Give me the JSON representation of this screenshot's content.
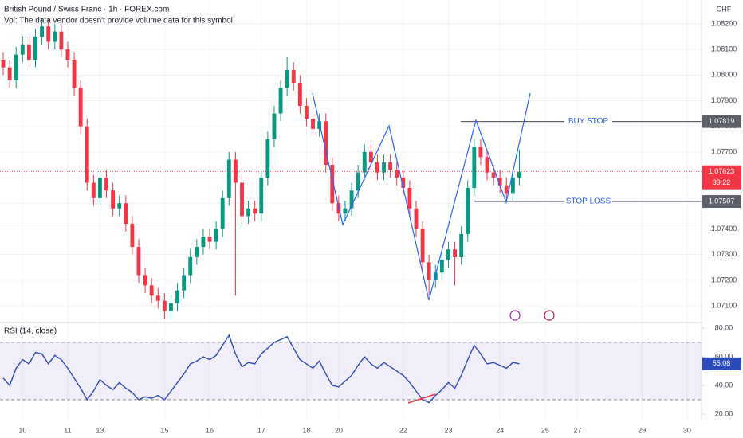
{
  "header": {
    "symbol": "British Pound / Swiss Franc · 1h · FOREX.com",
    "volume_note": "Vol: The data vendor doesn't provide volume data for this symbol.",
    "currency": "CHF"
  },
  "chart_data": [
    {
      "type": "candlestick",
      "up_color": "#089981",
      "down_color": "#f23645",
      "grid": true,
      "open": [
        1.0806,
        1.0803,
        1.0798,
        1.0808,
        1.0812,
        1.0806,
        1.0815,
        1.0819,
        1.0813,
        1.0817,
        1.081,
        1.0806,
        1.0795,
        1.078,
        1.0758,
        1.0752,
        1.076,
        1.0755,
        1.0748,
        1.075,
        1.0742,
        1.0733,
        1.0722,
        1.0718,
        1.0714,
        1.0712,
        1.0708,
        1.0711,
        1.0716,
        1.0722,
        1.0729,
        1.0733,
        1.0737,
        1.0735,
        1.074,
        1.0752,
        1.0767,
        1.0758,
        1.0745,
        1.0748,
        1.0746,
        1.076,
        1.0775,
        1.0785,
        1.0795,
        1.0802,
        1.0797,
        1.0788,
        1.0783,
        1.0779,
        1.0782,
        1.0765,
        1.075,
        1.0746,
        1.0748,
        1.0755,
        1.0762,
        1.077,
        1.0766,
        1.0762,
        1.0766,
        1.0763,
        1.076,
        1.0756,
        1.0748,
        1.074,
        1.0727,
        1.072,
        1.0723,
        1.0728,
        1.0732,
        1.0729,
        1.0738,
        1.0756,
        1.0772,
        1.0768,
        1.0762,
        1.076,
        1.0757,
        1.0754,
        1.076
      ],
      "high": [
        1.0809,
        1.0806,
        1.0811,
        1.0815,
        1.0815,
        1.0818,
        1.0822,
        1.0822,
        1.082,
        1.082,
        1.0813,
        1.0809,
        1.0798,
        1.0783,
        1.0761,
        1.0763,
        1.0763,
        1.0758,
        1.0753,
        1.0753,
        1.0745,
        1.0736,
        1.0725,
        1.0721,
        1.0717,
        1.0715,
        1.0714,
        1.0719,
        1.0725,
        1.0732,
        1.0736,
        1.074,
        1.074,
        1.0743,
        1.0755,
        1.077,
        1.077,
        1.0761,
        1.0751,
        1.0751,
        1.0763,
        1.0778,
        1.0788,
        1.0798,
        1.0807,
        1.0805,
        1.08,
        1.0791,
        1.0786,
        1.0785,
        1.0785,
        1.0768,
        1.0753,
        1.0751,
        1.0758,
        1.0765,
        1.0773,
        1.0773,
        1.0769,
        1.0769,
        1.0769,
        1.0766,
        1.0763,
        1.0759,
        1.0751,
        1.0743,
        1.073,
        1.0726,
        1.0731,
        1.0735,
        1.0735,
        1.0741,
        1.0759,
        1.0775,
        1.0775,
        1.0771,
        1.0765,
        1.0763,
        1.076,
        1.0763,
        1.0771
      ],
      "low": [
        1.08,
        1.0795,
        1.0795,
        1.0805,
        1.0803,
        1.0803,
        1.0812,
        1.081,
        1.081,
        1.0807,
        1.0803,
        1.0792,
        1.0777,
        1.0755,
        1.0749,
        1.0749,
        1.0752,
        1.0745,
        1.0745,
        1.0739,
        1.073,
        1.0719,
        1.0715,
        1.0711,
        1.0709,
        1.0705,
        1.0705,
        1.0708,
        1.0713,
        1.0719,
        1.0726,
        1.073,
        1.0732,
        1.0732,
        1.0737,
        1.0749,
        1.0714,
        1.0742,
        1.0742,
        1.0743,
        1.0743,
        1.0757,
        1.0772,
        1.0782,
        1.0792,
        1.0794,
        1.0785,
        1.078,
        1.0776,
        1.0776,
        1.0762,
        1.0747,
        1.0743,
        1.0743,
        1.0745,
        1.0752,
        1.0759,
        1.0763,
        1.0759,
        1.0759,
        1.076,
        1.0757,
        1.0753,
        1.0745,
        1.0737,
        1.0724,
        1.0714,
        1.0717,
        1.072,
        1.0725,
        1.0718,
        1.0726,
        1.0735,
        1.0753,
        1.0765,
        1.0759,
        1.0757,
        1.0754,
        1.0751,
        1.0751,
        1.0757
      ],
      "close": [
        1.0803,
        1.0798,
        1.0808,
        1.0812,
        1.0806,
        1.0815,
        1.0819,
        1.0813,
        1.0817,
        1.081,
        1.0806,
        1.0795,
        1.078,
        1.0758,
        1.0752,
        1.076,
        1.0755,
        1.0748,
        1.075,
        1.0742,
        1.0733,
        1.0722,
        1.0718,
        1.0714,
        1.0712,
        1.0708,
        1.0711,
        1.0716,
        1.0722,
        1.0729,
        1.0733,
        1.0737,
        1.0735,
        1.074,
        1.0752,
        1.0767,
        1.0758,
        1.0745,
        1.0748,
        1.0746,
        1.076,
        1.0775,
        1.0785,
        1.0795,
        1.0802,
        1.0797,
        1.0788,
        1.0783,
        1.0779,
        1.0782,
        1.0765,
        1.075,
        1.0746,
        1.0748,
        1.0755,
        1.0762,
        1.077,
        1.0766,
        1.0762,
        1.0766,
        1.0763,
        1.076,
        1.0756,
        1.0748,
        1.074,
        1.0727,
        1.072,
        1.0723,
        1.0728,
        1.0732,
        1.0729,
        1.0738,
        1.0756,
        1.0772,
        1.0768,
        1.0762,
        1.076,
        1.0757,
        1.0754,
        1.076,
        1.07623
      ],
      "ylim": [
        1.07035,
        1.08293
      ],
      "yticks": [
        {
          "value": 1.071,
          "label": "1.07100"
        },
        {
          "value": 1.072,
          "label": "1.07200"
        },
        {
          "value": 1.073,
          "label": "1.07300"
        },
        {
          "value": 1.074,
          "label": "1.07400"
        },
        {
          "value": 1.075,
          "label": "1.07500"
        },
        {
          "value": 1.076,
          "label": "1.07600"
        },
        {
          "value": 1.077,
          "label": "1.07700"
        },
        {
          "value": 1.078,
          "label": "1.07800"
        },
        {
          "value": 1.079,
          "label": "1.07900"
        },
        {
          "value": 1.08,
          "label": "1.08000"
        },
        {
          "value": 1.081,
          "label": "1.08100"
        },
        {
          "value": 1.082,
          "label": "1.08200"
        }
      ],
      "xlim": [
        -0.5,
        107
      ],
      "xticks": [
        {
          "value": 3,
          "label": "10"
        },
        {
          "value": 10,
          "label": "11"
        },
        {
          "value": 15,
          "label": "13"
        },
        {
          "value": 25,
          "label": "15"
        },
        {
          "value": 32,
          "label": "16"
        },
        {
          "value": 40,
          "label": "17"
        },
        {
          "value": 47,
          "label": "18"
        },
        {
          "value": 52,
          "label": "20"
        },
        {
          "value": 62,
          "label": "22"
        },
        {
          "value": 69,
          "label": "23"
        },
        {
          "value": 77,
          "label": "24"
        },
        {
          "value": 84,
          "label": "25"
        },
        {
          "value": 89,
          "label": "27"
        },
        {
          "value": 99,
          "label": "29"
        },
        {
          "value": 106,
          "label": "30"
        }
      ],
      "countdown": "39:22",
      "levels": [
        {
          "name": "BUY STOP",
          "value": 1.07819
        },
        {
          "name": "STOP LOSS",
          "value": 1.07507
        }
      ]
    },
    {
      "type": "line",
      "title": "RSI (14, close)",
      "color": "#2a4ab8",
      "band": [
        30,
        70
      ],
      "values": [
        45,
        40,
        52,
        58,
        55,
        63,
        62,
        55,
        61,
        58,
        52,
        45,
        38,
        30,
        36,
        44,
        40,
        37,
        42,
        38,
        35,
        30,
        32,
        31,
        33,
        30,
        36,
        42,
        48,
        55,
        57,
        60,
        58,
        61,
        68,
        75,
        62,
        53,
        56,
        55,
        62,
        66,
        70,
        72,
        74,
        66,
        58,
        55,
        52,
        57,
        48,
        40,
        39,
        43,
        47,
        54,
        60,
        55,
        52,
        56,
        53,
        50,
        47,
        42,
        36,
        30,
        28,
        33,
        37,
        42,
        38,
        47,
        58,
        68,
        62,
        55,
        56,
        54,
        52,
        56,
        55.08
      ],
      "ylim": [
        14.4,
        83.9
      ],
      "yticks": [
        {
          "value": 20,
          "label": "20.00"
        },
        {
          "value": 40,
          "label": "40.00"
        },
        {
          "value": 60,
          "label": "60.00"
        },
        {
          "value": 80,
          "label": "80.00"
        }
      ]
    }
  ]
}
